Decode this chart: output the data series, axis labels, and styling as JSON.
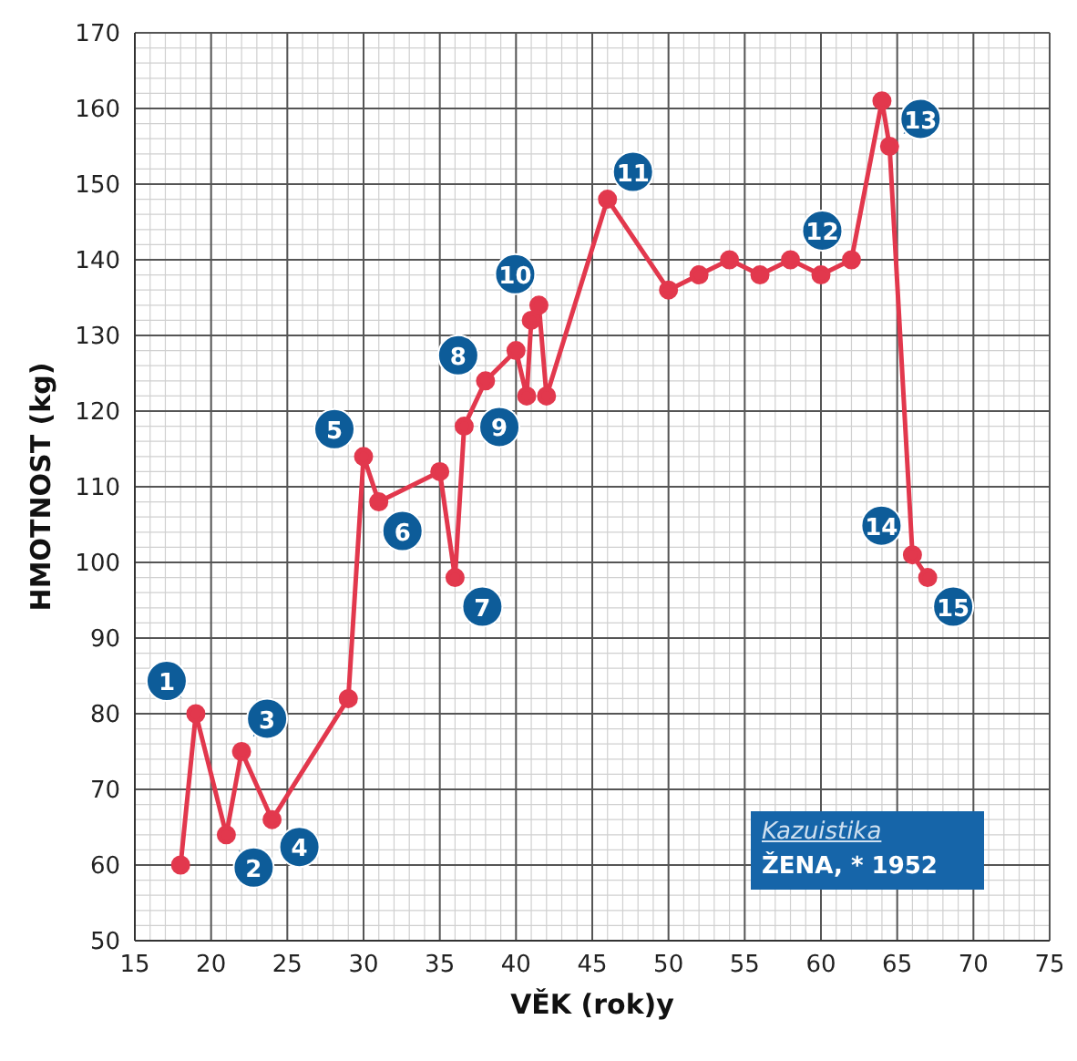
{
  "chart_data": {
    "type": "line",
    "xlabel": "VĚK (rok)y",
    "ylabel": "HMOTNOST (kg)",
    "x": [
      18,
      19,
      21,
      22,
      24,
      29,
      30,
      31,
      35,
      36,
      36.6,
      38,
      40,
      40.7,
      41,
      41.5,
      42,
      46,
      50,
      52,
      54,
      56,
      58,
      60,
      62,
      64,
      64.5,
      66,
      67
    ],
    "series": [
      {
        "color": "#e2384d",
        "values": [
          60,
          80,
          64,
          75,
          66,
          82,
          114,
          108,
          112,
          98,
          118,
          124,
          128,
          122,
          132,
          134,
          122,
          148,
          136,
          138,
          140,
          138,
          140,
          138,
          140,
          161,
          155,
          101,
          98
        ]
      }
    ],
    "xlim": [
      15,
      75
    ],
    "xticks": [
      15,
      20,
      25,
      30,
      35,
      40,
      45,
      50,
      55,
      60,
      65,
      70,
      75
    ],
    "ylim": [
      50,
      170
    ],
    "yticks": [
      50,
      60,
      70,
      80,
      90,
      100,
      110,
      120,
      130,
      140,
      150,
      160,
      170
    ],
    "grid": true,
    "legend": false,
    "marker": "circle",
    "line_style": "solid",
    "annotations": [
      {
        "text": "1",
        "x": 19,
        "y": 80
      },
      {
        "text": "2",
        "x": 21,
        "y": 64
      },
      {
        "text": "3",
        "x": 22,
        "y": 75
      },
      {
        "text": "4",
        "x": 24,
        "y": 66
      },
      {
        "text": "5",
        "x": 30,
        "y": 114
      },
      {
        "text": "6",
        "x": 31,
        "y": 108
      },
      {
        "text": "7",
        "x": 36,
        "y": 98
      },
      {
        "text": "8",
        "x": 38,
        "y": 124
      },
      {
        "text": "9",
        "x": 40.7,
        "y": 122
      },
      {
        "text": "10",
        "x": 41.5,
        "y": 134
      },
      {
        "text": "11",
        "x": 46,
        "y": 148
      },
      {
        "text": "12",
        "x": 62,
        "y": 140
      },
      {
        "text": "13",
        "x": 64.5,
        "y": 155
      },
      {
        "text": "14",
        "x": 66,
        "y": 101
      },
      {
        "text": "15",
        "x": 67,
        "y": 98
      },
      "Kazuistika",
      "ŽENA, * 1952"
    ]
  }
}
